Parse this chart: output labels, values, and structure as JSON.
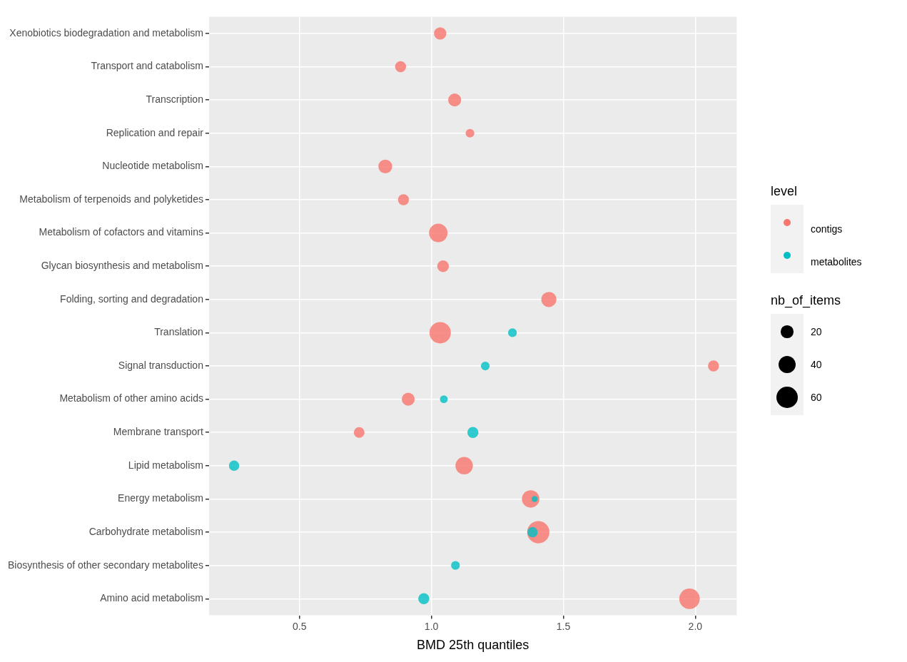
{
  "chart_data": {
    "type": "bubble",
    "orientation": "horizontal",
    "xlabel": "BMD 25th quantiles",
    "legend_title": "level",
    "legend": "right",
    "grid": true,
    "marker": "circle",
    "categories": [
      "Xenobiotics biodegradation and metabolism",
      "Transport and catabolism",
      "Transcription",
      "Replication and repair",
      "Nucleotide metabolism",
      "Metabolism of terpenoids and polyketides",
      "Metabolism of cofactors and vitamins",
      "Glycan biosynthesis and metabolism",
      "Folding, sorting and degradation",
      "Translation",
      "Signal transduction",
      "Metabolism of other amino acids",
      "Membrane transport",
      "Lipid metabolism",
      "Energy metabolism",
      "Carbohydrate metabolism",
      "Biosynthesis of other secondary metabolites",
      "Amino acid metabolism"
    ],
    "xlim": [
      0.157,
      2.157
    ],
    "xticks": [
      0.5,
      {
        "value": 1,
        "label": "1.0"
      },
      1.5,
      {
        "value": 2,
        "label": "2.0"
      }
    ],
    "size_legend": [
      20,
      40,
      60
    ],
    "annotations": [
      "nb_of_items"
    ],
    "series": [
      {
        "name": "contigs",
        "color": "#f8766d",
        "values": [
          1.033,
          0.883,
          1.088,
          1.146,
          0.825,
          0.894,
          1.026,
          1.044,
          1.445,
          1.033,
          2.069,
          0.912,
          0.726,
          1.124,
          1.376,
          1.405,
          null,
          1.978
        ],
        "sizes": [
          20,
          16,
          22,
          10,
          25,
          16,
          45,
          18,
          30,
          60,
          16,
          22,
          15,
          40,
          40,
          65,
          null,
          55
        ]
      },
      {
        "name": "metabolites",
        "color": "#00bfc4",
        "values": [
          null,
          null,
          null,
          null,
          null,
          null,
          null,
          null,
          null,
          1.307,
          1.204,
          1.047,
          1.157,
          0.252,
          1.391,
          1.383,
          1.091,
          0.971
        ],
        "sizes": [
          null,
          null,
          null,
          null,
          null,
          null,
          null,
          null,
          null,
          10,
          10,
          8,
          16,
          14,
          5,
          14,
          10,
          16
        ]
      }
    ]
  }
}
